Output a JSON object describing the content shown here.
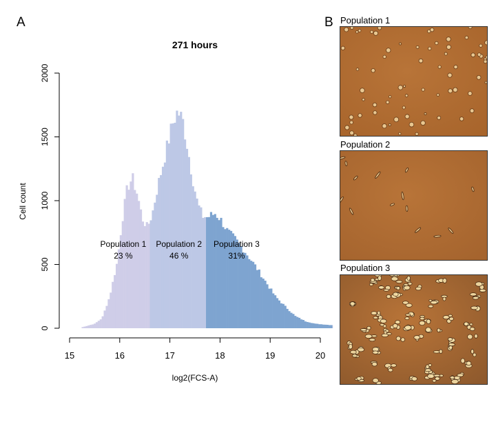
{
  "panel_a": {
    "letter": "A"
  },
  "panel_b": {
    "letter": "B",
    "images": [
      {
        "caption": "Population 1",
        "description": "rounded-cells"
      },
      {
        "caption": "Population 2",
        "description": "sparse-spindle-cells"
      },
      {
        "caption": "Population 3",
        "description": "clustered-bright-cells"
      }
    ]
  },
  "colors": {
    "population_1": "#cfcde8",
    "population_2": "#bdc8e6",
    "population_3": "#7ea4d0"
  },
  "chart_data": {
    "type": "bar",
    "title": "271 hours",
    "xlabel": "log2(FCS-A)",
    "ylabel": "Cell count",
    "xlim": [
      15,
      20.2
    ],
    "ylim": [
      0,
      2000
    ],
    "xticks": [
      15,
      16,
      17,
      18,
      19,
      20
    ],
    "yticks": [
      0,
      500,
      1000,
      1500,
      2000
    ],
    "bin_width": 0.04,
    "profile_points": [
      [
        15.25,
        8
      ],
      [
        15.5,
        35
      ],
      [
        15.65,
        80
      ],
      [
        15.8,
        250
      ],
      [
        15.95,
        520
      ],
      [
        16.05,
        850
      ],
      [
        16.15,
        1100
      ],
      [
        16.25,
        1180
      ],
      [
        16.35,
        1050
      ],
      [
        16.45,
        860
      ],
      [
        16.55,
        790
      ],
      [
        16.65,
        900
      ],
      [
        16.75,
        1100
      ],
      [
        16.9,
        1350
      ],
      [
        17.05,
        1600
      ],
      [
        17.15,
        1700
      ],
      [
        17.25,
        1640
      ],
      [
        17.35,
        1420
      ],
      [
        17.45,
        1180
      ],
      [
        17.55,
        980
      ],
      [
        17.65,
        880
      ],
      [
        17.75,
        870
      ],
      [
        17.9,
        900
      ],
      [
        18.0,
        860
      ],
      [
        18.15,
        760
      ],
      [
        18.3,
        700
      ],
      [
        18.5,
        600
      ],
      [
        18.7,
        490
      ],
      [
        18.9,
        370
      ],
      [
        19.1,
        250
      ],
      [
        19.3,
        170
      ],
      [
        19.5,
        95
      ],
      [
        19.7,
        55
      ],
      [
        19.9,
        35
      ],
      [
        20.2,
        25
      ]
    ],
    "series": [
      {
        "name": "Population 1",
        "percent": "23 %",
        "x_range": [
          15.2,
          16.6
        ],
        "label_x": 16.07,
        "label_y": 600
      },
      {
        "name": "Population 2",
        "percent": "46 %",
        "x_range": [
          16.6,
          17.7
        ],
        "label_x": 17.18,
        "label_y": 600
      },
      {
        "name": "Population 3",
        "percent": "31%",
        "x_range": [
          17.7,
          20.25
        ],
        "label_x": 18.33,
        "label_y": 600
      }
    ]
  }
}
